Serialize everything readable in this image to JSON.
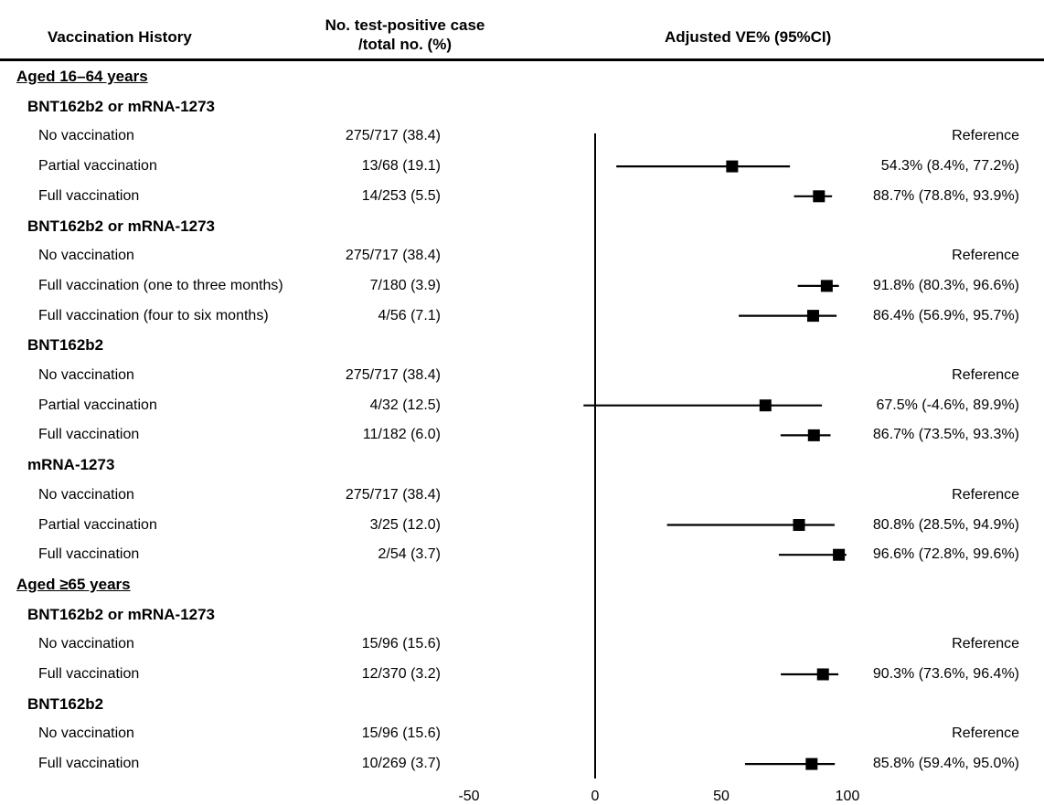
{
  "headers": {
    "vaccination_history": "Vaccination History",
    "count_line1": "No. test-positive case",
    "count_line2": "/total no. (%)",
    "ve": "Adjusted VE% (95%CI)"
  },
  "rows": [
    {
      "kind": "section",
      "label": "Aged 16–64 years"
    },
    {
      "kind": "group",
      "label": "BNT162b2 or mRNA-1273"
    },
    {
      "kind": "item",
      "label": "No vaccination",
      "count": "275/717 (38.4)",
      "ve_text": "Reference"
    },
    {
      "kind": "item",
      "label": "Partial vaccination",
      "count": "13/68 (19.1)",
      "ve_text": "54.3% (8.4%, 77.2%)"
    },
    {
      "kind": "item",
      "label": "Full vaccination",
      "count": "14/253 (5.5)",
      "ve_text": "88.7% (78.8%, 93.9%)"
    },
    {
      "kind": "group",
      "label": "BNT162b2 or mRNA-1273"
    },
    {
      "kind": "item",
      "label": "No vaccination",
      "count": "275/717 (38.4)",
      "ve_text": "Reference"
    },
    {
      "kind": "item",
      "label": "Full vaccination (one to three months)",
      "count": "7/180 (3.9)",
      "ve_text": "91.8% (80.3%, 96.6%)"
    },
    {
      "kind": "item",
      "label": "Full vaccination (four to six months)",
      "count": "4/56 (7.1)",
      "ve_text": "86.4% (56.9%, 95.7%)"
    },
    {
      "kind": "group",
      "label": "BNT162b2"
    },
    {
      "kind": "item",
      "label": "No vaccination",
      "count": "275/717 (38.4)",
      "ve_text": "Reference"
    },
    {
      "kind": "item",
      "label": "Partial vaccination",
      "count": "4/32 (12.5)",
      "ve_text": "67.5% (-4.6%, 89.9%)"
    },
    {
      "kind": "item",
      "label": "Full vaccination",
      "count": "11/182 (6.0)",
      "ve_text": "86.7% (73.5%, 93.3%)"
    },
    {
      "kind": "group",
      "label": "mRNA-1273"
    },
    {
      "kind": "item",
      "label": "No vaccination",
      "count": "275/717 (38.4)",
      "ve_text": "Reference"
    },
    {
      "kind": "item",
      "label": "Partial vaccination",
      "count": "3/25 (12.0)",
      "ve_text": "80.8% (28.5%, 94.9%)"
    },
    {
      "kind": "item",
      "label": "Full vaccination",
      "count": "2/54 (3.7)",
      "ve_text": "96.6% (72.8%, 99.6%)"
    },
    {
      "kind": "section",
      "label": "Aged ≥65 years"
    },
    {
      "kind": "group",
      "label": "BNT162b2 or mRNA-1273"
    },
    {
      "kind": "item",
      "label": "No vaccination",
      "count": "15/96 (15.6)",
      "ve_text": "Reference"
    },
    {
      "kind": "item",
      "label": "Full vaccination",
      "count": "12/370 (3.2)",
      "ve_text": "90.3% (73.6%, 96.4%)"
    },
    {
      "kind": "group",
      "label": "BNT162b2"
    },
    {
      "kind": "item",
      "label": "No vaccination",
      "count": "15/96 (15.6)",
      "ve_text": "Reference"
    },
    {
      "kind": "item",
      "label": "Full vaccination",
      "count": "10/269 (3.7)",
      "ve_text": "85.8% (59.4%, 95.0%)"
    }
  ],
  "chart_data": {
    "type": "forest",
    "xlabel": "",
    "xlim": [
      -50,
      100
    ],
    "xticks": [
      -50,
      0,
      50,
      100
    ],
    "reference_line": 0,
    "points": [
      {
        "row": 3,
        "ve": 54.3,
        "lo": 8.4,
        "hi": 77.2
      },
      {
        "row": 4,
        "ve": 88.7,
        "lo": 78.8,
        "hi": 93.9
      },
      {
        "row": 7,
        "ve": 91.8,
        "lo": 80.3,
        "hi": 96.6
      },
      {
        "row": 8,
        "ve": 86.4,
        "lo": 56.9,
        "hi": 95.7
      },
      {
        "row": 11,
        "ve": 67.5,
        "lo": -4.6,
        "hi": 89.9
      },
      {
        "row": 12,
        "ve": 86.7,
        "lo": 73.5,
        "hi": 93.3
      },
      {
        "row": 15,
        "ve": 80.8,
        "lo": 28.5,
        "hi": 94.9
      },
      {
        "row": 16,
        "ve": 96.6,
        "lo": 72.8,
        "hi": 99.6
      },
      {
        "row": 20,
        "ve": 90.3,
        "lo": 73.6,
        "hi": 96.4
      },
      {
        "row": 23,
        "ve": 85.8,
        "lo": 59.4,
        "hi": 95.0
      }
    ],
    "colors": {
      "marks": "#000000"
    }
  }
}
